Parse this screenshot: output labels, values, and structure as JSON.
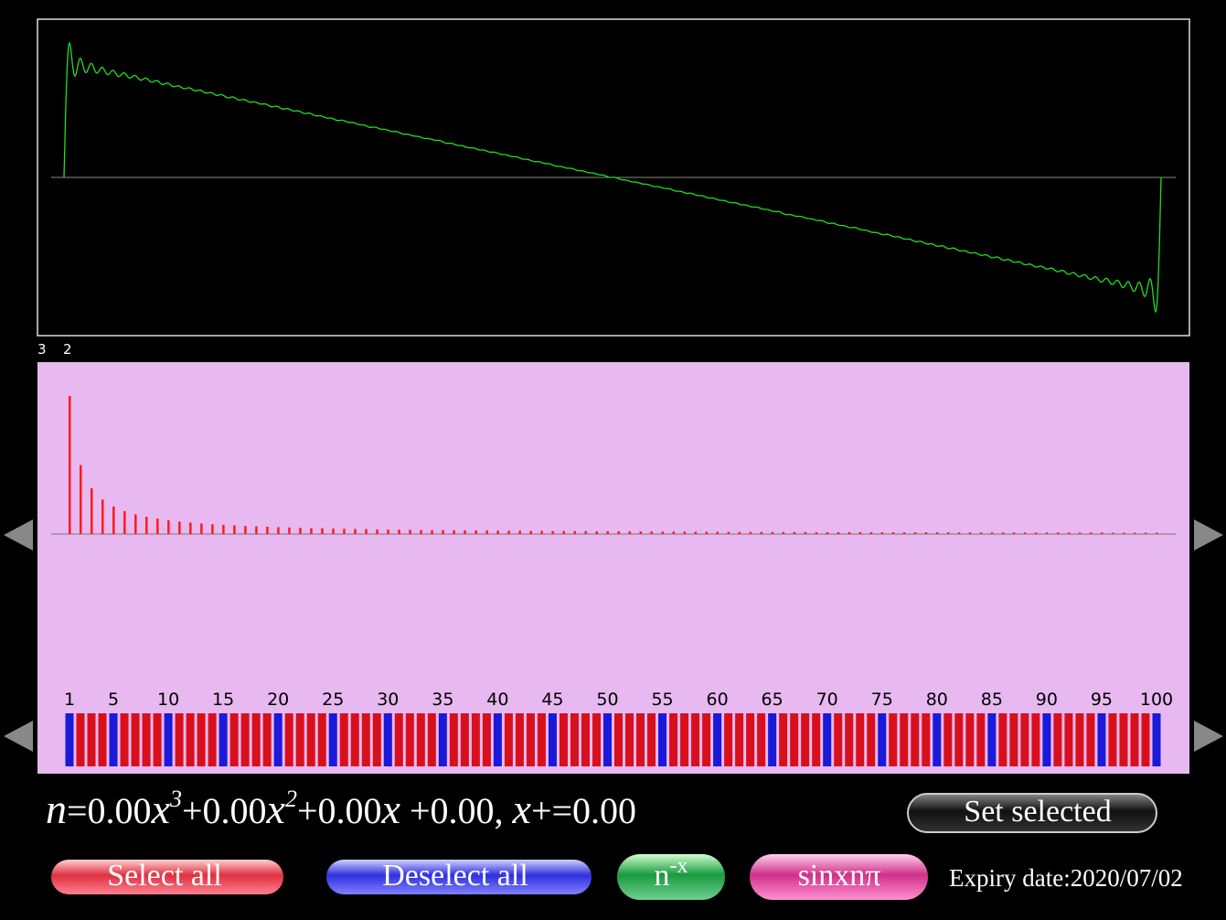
{
  "wave_panel": {
    "labels": [
      "3",
      "2"
    ]
  },
  "spectrum": {
    "values": [
      1,
      0.5,
      0.333,
      0.25,
      0.2,
      0.167,
      0.143,
      0.125,
      0.111,
      0.1,
      0.091,
      0.083,
      0.077,
      0.071,
      0.067,
      0.063,
      0.059,
      0.056,
      0.053,
      0.05,
      0.048,
      0.045,
      0.043,
      0.042,
      0.04,
      0.038,
      0.037,
      0.036,
      0.034,
      0.033,
      0.032,
      0.031,
      0.03,
      0.029,
      0.029,
      0.028,
      0.027,
      0.026,
      0.026,
      0.025,
      0.024,
      0.024,
      0.023,
      0.023,
      0.022,
      0.022,
      0.021,
      0.021,
      0.02,
      0.02,
      0.02,
      0.019,
      0.019,
      0.019,
      0.018,
      0.018,
      0.018,
      0.017,
      0.017,
      0.017,
      0.016,
      0.016,
      0.016,
      0.016,
      0.015,
      0.015,
      0.015,
      0.015,
      0.014,
      0.014,
      0.014,
      0.014,
      0.014,
      0.014,
      0.013,
      0.013,
      0.013,
      0.013,
      0.013,
      0.013,
      0.012,
      0.012,
      0.012,
      0.012,
      0.012,
      0.012,
      0.011,
      0.011,
      0.011,
      0.011,
      0.011,
      0.011,
      0.011,
      0.011,
      0.011,
      0.01,
      0.01,
      0.01,
      0.01,
      0.01
    ],
    "color": "#ff1a1a",
    "selector_labels": [
      1,
      5,
      10,
      15,
      20,
      25,
      30,
      35,
      40,
      45,
      50,
      55,
      60,
      65,
      70,
      75,
      80,
      85,
      90,
      95,
      100
    ],
    "selected_color": "#1a1ad8",
    "unselected_color": "#d8101c"
  },
  "formula": [
    {
      "text": "n",
      "style": "italic"
    },
    {
      "text": "=0.00",
      "style": "plain"
    },
    {
      "text": "x",
      "style": "italic"
    },
    {
      "text": "3",
      "style": "sup"
    },
    {
      "text": "+0.00",
      "style": "plain"
    },
    {
      "text": "x",
      "style": "italic"
    },
    {
      "text": "2",
      "style": "sup"
    },
    {
      "text": "+0.00",
      "style": "plain"
    },
    {
      "text": "x",
      "style": "italic"
    },
    {
      "text": " +0.00, ",
      "style": "plain"
    },
    {
      "text": "x",
      "style": "italic"
    },
    {
      "text": "+=0.00",
      "style": "plain"
    }
  ],
  "buttons": {
    "set_selected": "Set selected",
    "select_all": "Select all",
    "deselect_all": "Deselect all",
    "power": {
      "base": "n",
      "sup": "-x"
    },
    "sine": "sinxnπ"
  },
  "expiry": "Expiry date:2020/07/02"
}
